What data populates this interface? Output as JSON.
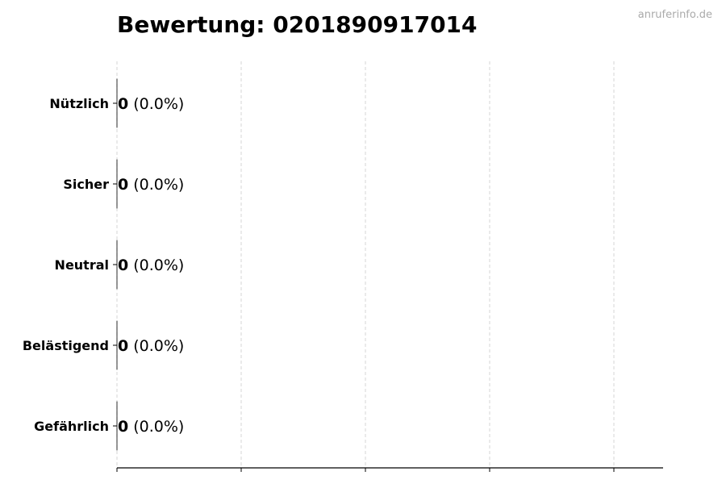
{
  "title": "Bewertung: 0201890917014",
  "watermark": "anruferinfo.de",
  "chart_data": {
    "type": "bar",
    "orientation": "horizontal",
    "title": "Bewertung: 0201890917014",
    "xlabel": "",
    "ylabel": "",
    "categories": [
      "Nützlich",
      "Sicher",
      "Neutral",
      "Belästigend",
      "Gefährlich"
    ],
    "values": [
      0,
      0,
      0,
      0,
      0
    ],
    "labels": [
      {
        "count": "0",
        "percent": "(0.0%)"
      },
      {
        "count": "0",
        "percent": "(0.0%)"
      },
      {
        "count": "0",
        "percent": "(0.0%)"
      },
      {
        "count": "0",
        "percent": "(0.0%)"
      },
      {
        "count": "0",
        "percent": "(0.0%)"
      }
    ],
    "grid": "x, dashed",
    "x_tick_labels": "none",
    "colors": {
      "bar_edge": "#000000",
      "grid": "#cccccc",
      "watermark": "#aaaaaa"
    }
  }
}
